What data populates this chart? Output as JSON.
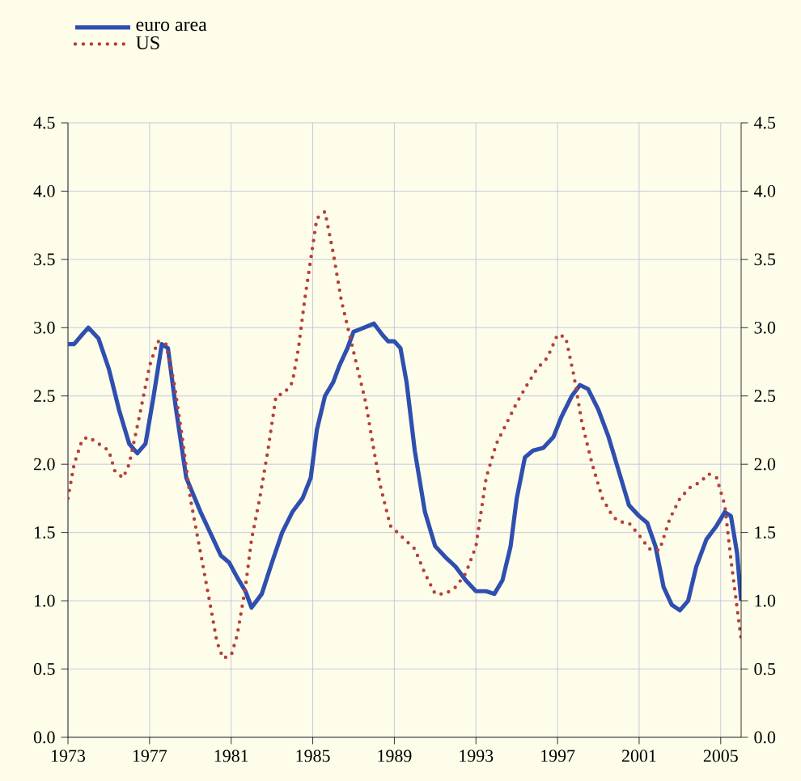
{
  "chart_data": {
    "type": "line",
    "legend": "top left",
    "grid": true,
    "xlim": [
      1973,
      2006
    ],
    "xticks": [
      1973,
      1977,
      1981,
      1985,
      1989,
      1993,
      1997,
      2001,
      2005
    ],
    "ylim": [
      0,
      4.5
    ],
    "yticks": [
      {
        "value": 0,
        "label": "0.0"
      },
      {
        "value": 0.5,
        "label": "0.5"
      },
      {
        "value": 1,
        "label": "1.0"
      },
      {
        "value": 1.5,
        "label": "1.5"
      },
      {
        "value": 2,
        "label": "2.0"
      },
      {
        "value": 2.5,
        "label": "2.5"
      },
      {
        "value": 3,
        "label": "3.0"
      },
      {
        "value": 3.5,
        "label": "3.5"
      },
      {
        "value": 4,
        "label": "4.0"
      },
      {
        "value": 4.5,
        "label": "4.5"
      }
    ],
    "y2lim": [
      0,
      4.5
    ],
    "y2ticks": [
      {
        "value": 0,
        "label": "0.0"
      },
      {
        "value": 0.5,
        "label": "0.5"
      },
      {
        "value": 1,
        "label": "1.0"
      },
      {
        "value": 1.5,
        "label": "1.5"
      },
      {
        "value": 2,
        "label": "2.0"
      },
      {
        "value": 2.5,
        "label": "2.5"
      },
      {
        "value": 3,
        "label": "3.0"
      },
      {
        "value": 3.5,
        "label": "3.5"
      },
      {
        "value": 4,
        "label": "4.0"
      },
      {
        "value": 4.5,
        "label": "4.5"
      }
    ],
    "series": [
      {
        "name": "euro area",
        "color": "#2f4fb0",
        "line_style": "solid",
        "x": [
          1973.0,
          1973.3,
          1973.7,
          1974.0,
          1974.5,
          1975.0,
          1975.5,
          1976.0,
          1976.4,
          1976.8,
          1977.2,
          1977.6,
          1977.9,
          1978.3,
          1978.8,
          1979.5,
          1980.5,
          1980.9,
          1981.3,
          1981.7,
          1982.0,
          1982.5,
          1983.0,
          1983.5,
          1984.0,
          1984.5,
          1984.9,
          1985.2,
          1985.6,
          1986.0,
          1986.3,
          1986.7,
          1987.0,
          1987.5,
          1988.0,
          1988.4,
          1988.7,
          1989.0,
          1989.3,
          1989.6,
          1990.0,
          1990.5,
          1991.0,
          1991.5,
          1992.0,
          1992.5,
          1993.0,
          1993.5,
          1993.9,
          1994.3,
          1994.7,
          1995.0,
          1995.4,
          1995.8,
          1996.3,
          1996.8,
          1997.2,
          1997.7,
          1998.1,
          1998.5,
          1999.0,
          1999.5,
          2000.0,
          2000.5,
          2001.0,
          2001.4,
          2001.8,
          2002.2,
          2002.6,
          2003.0,
          2003.4,
          2003.8,
          2004.3,
          2004.8,
          2005.2,
          2005.5,
          2005.8,
          2006.0
        ],
        "values": [
          2.88,
          2.88,
          2.95,
          3.0,
          2.92,
          2.7,
          2.4,
          2.15,
          2.08,
          2.15,
          2.5,
          2.88,
          2.85,
          2.4,
          1.9,
          1.65,
          1.33,
          1.28,
          1.17,
          1.07,
          0.95,
          1.05,
          1.28,
          1.5,
          1.65,
          1.75,
          1.9,
          2.25,
          2.5,
          2.6,
          2.72,
          2.85,
          2.97,
          3.0,
          3.03,
          2.95,
          2.9,
          2.9,
          2.85,
          2.6,
          2.1,
          1.65,
          1.4,
          1.32,
          1.25,
          1.15,
          1.07,
          1.07,
          1.05,
          1.15,
          1.4,
          1.75,
          2.05,
          2.1,
          2.12,
          2.2,
          2.35,
          2.5,
          2.58,
          2.55,
          2.4,
          2.2,
          1.95,
          1.7,
          1.62,
          1.57,
          1.4,
          1.1,
          0.97,
          0.93,
          1.0,
          1.25,
          1.45,
          1.55,
          1.65,
          1.62,
          1.35,
          1.0
        ]
      },
      {
        "name": "US",
        "color": "#b5403a",
        "line_style": "dotted",
        "x": [
          1973.0,
          1973.3,
          1973.7,
          1974.0,
          1974.5,
          1975.0,
          1975.3,
          1975.7,
          1976.0,
          1976.5,
          1977.0,
          1977.4,
          1977.8,
          1978.2,
          1978.6,
          1979.0,
          1979.5,
          1980.0,
          1980.3,
          1980.6,
          1981.0,
          1981.3,
          1981.7,
          1982.0,
          1982.4,
          1982.8,
          1983.2,
          1983.6,
          1984.0,
          1984.3,
          1984.6,
          1984.9,
          1985.2,
          1985.6,
          1986.0,
          1986.4,
          1986.8,
          1987.2,
          1987.6,
          1988.0,
          1988.3,
          1988.8,
          1989.5,
          1990.0,
          1990.5,
          1991.0,
          1991.5,
          1992.0,
          1992.5,
          1993.0,
          1993.5,
          1994.0,
          1994.5,
          1995.0,
          1995.5,
          1996.0,
          1996.5,
          1997.0,
          1997.4,
          1997.8,
          1998.2,
          1998.7,
          1999.2,
          1999.7,
          2000.0,
          2000.5,
          2001.0,
          2001.5,
          2002.0,
          2002.5,
          2003.0,
          2003.5,
          2004.0,
          2004.4,
          2004.8,
          2005.2,
          2005.5,
          2005.8,
          2006.0
        ],
        "values": [
          1.75,
          2.0,
          2.18,
          2.2,
          2.15,
          2.1,
          1.95,
          1.9,
          2.0,
          2.35,
          2.72,
          2.9,
          2.88,
          2.6,
          2.2,
          1.75,
          1.35,
          0.95,
          0.7,
          0.58,
          0.6,
          0.75,
          1.1,
          1.45,
          1.75,
          2.1,
          2.5,
          2.52,
          2.6,
          2.85,
          3.2,
          3.5,
          3.8,
          3.85,
          3.55,
          3.2,
          2.95,
          2.7,
          2.45,
          2.1,
          1.85,
          1.55,
          1.45,
          1.38,
          1.2,
          1.05,
          1.05,
          1.1,
          1.2,
          1.4,
          1.9,
          2.15,
          2.3,
          2.45,
          2.58,
          2.7,
          2.78,
          2.95,
          2.93,
          2.65,
          2.3,
          2.0,
          1.75,
          1.62,
          1.58,
          1.57,
          1.48,
          1.38,
          1.37,
          1.6,
          1.75,
          1.83,
          1.87,
          1.93,
          1.9,
          1.7,
          1.3,
          0.95,
          0.72
        ]
      }
    ]
  }
}
